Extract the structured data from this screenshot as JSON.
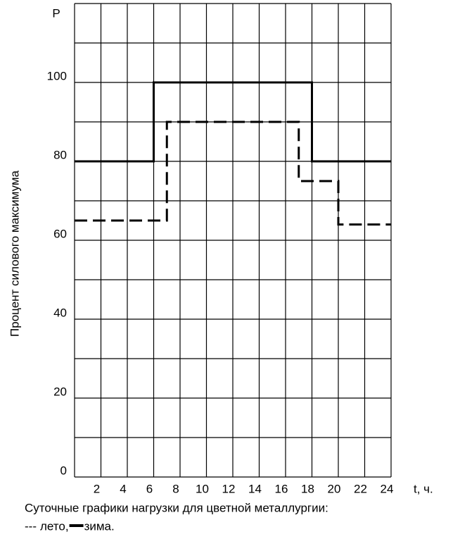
{
  "chart_data": {
    "type": "line",
    "step": true,
    "y_label_top": "P",
    "ylabel": "Процент силового максимума",
    "xlabel": "t, ч.",
    "caption": "Суточные графики нагрузки для цветной металлургии:",
    "xlim": [
      0,
      24
    ],
    "xticks": [
      2,
      4,
      6,
      8,
      10,
      12,
      14,
      16,
      18,
      20,
      22,
      24
    ],
    "xgrid": [
      0,
      2,
      4,
      6,
      8,
      10,
      12,
      14,
      16,
      18,
      20,
      22,
      24
    ],
    "ylim": [
      0,
      120
    ],
    "yticks": [
      0,
      20,
      40,
      60,
      80,
      100
    ],
    "ygrid": [
      0,
      10,
      20,
      30,
      40,
      50,
      60,
      70,
      80,
      90,
      100,
      110,
      120
    ],
    "grid": true,
    "series": [
      {
        "name": "лето,",
        "color": "#000000",
        "dash": "18 8",
        "legend_symbol": "---",
        "x": [
          0,
          7,
          7,
          17,
          17,
          20,
          20,
          24
        ],
        "values": [
          65,
          65,
          90,
          90,
          75,
          75,
          64,
          64
        ]
      },
      {
        "name": "зима.",
        "color": "#000000",
        "x": [
          0,
          6,
          6,
          18,
          18,
          24
        ],
        "values": [
          80,
          80,
          100,
          100,
          80,
          80
        ]
      }
    ]
  }
}
